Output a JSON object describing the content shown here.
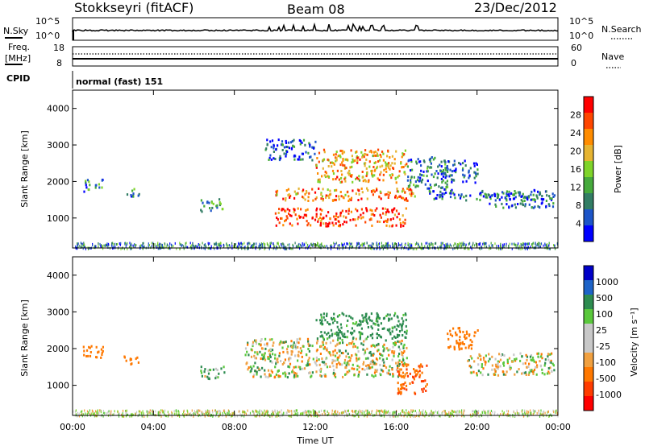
{
  "header": {
    "station": "Stokkseyri (fitACF)",
    "beam": "Beam 08",
    "date": "23/Dec/2012"
  },
  "noise_panel": {
    "left_label": "N.Sky",
    "left_ticks": [
      "10^5",
      "10^0"
    ],
    "right_label": "N.Search",
    "right_ticks": [
      "10^5",
      "10^0"
    ]
  },
  "freq_panel": {
    "left_label_line1": "Freq.",
    "left_label_line2": "[MHz]",
    "left_ticks": [
      "18",
      "8"
    ],
    "right_label": "Nave",
    "right_ticks": [
      "60",
      "0"
    ]
  },
  "cpid_panel": {
    "label": "CPID",
    "mode": "normal (fast) 151"
  },
  "power_panel": {
    "ylabel": "Slant Range [km]",
    "yticks": [
      "4000",
      "3000",
      "2000",
      "1000"
    ],
    "colorbar_label": "Power [dB]",
    "colorbar_ticks": [
      "28",
      "24",
      "20",
      "16",
      "12",
      "8",
      "4"
    ],
    "colors": [
      "#0000ff",
      "#1d55c8",
      "#327d64",
      "#46aa3c",
      "#7fd42a",
      "#e6b432",
      "#ff8c00",
      "#ff4600",
      "#ff0000"
    ]
  },
  "velocity_panel": {
    "ylabel": "Slant Range [km]",
    "yticks": [
      "4000",
      "3000",
      "2000",
      "1000"
    ],
    "colorbar_label": "Velocity [m s⁻¹]",
    "colorbar_ticks": [
      "1000",
      "500",
      "100",
      "25",
      "-25",
      "-100",
      "-500",
      "-1000"
    ],
    "colors": [
      "#0000c8",
      "#1e64c8",
      "#2d8c50",
      "#5ac83c",
      "#c8c8c8",
      "#c8c8c8",
      "#f0a040",
      "#ff7800",
      "#ff3c00",
      "#ff0000"
    ],
    "ground_scatter_color": "#c8c8c8"
  },
  "xaxis": {
    "label": "Time UT",
    "ticks": [
      "00:00",
      "04:00",
      "08:00",
      "12:00",
      "16:00",
      "20:00",
      "00:00"
    ]
  },
  "chart_data": {
    "type": "heatmap",
    "title": "Stokkseyri (fitACF) Beam 08 23/Dec/2012",
    "xlabel": "Time UT",
    "ylabel": "Slant Range [km]",
    "xlim_hours": [
      0,
      24
    ],
    "ylim_km": [
      180,
      4500
    ],
    "power_scale_dB": [
      0,
      30
    ],
    "velocity_scale_ms": [
      -1000,
      1000
    ],
    "power_regions": [
      {
        "t0": 0.5,
        "t1": 1.5,
        "r0": 1750,
        "r1": 2100,
        "dB": 8
      },
      {
        "t0": 2.5,
        "t1": 3.3,
        "r0": 1600,
        "r1": 1850,
        "dB": 8
      },
      {
        "t0": 6.3,
        "t1": 7.5,
        "r0": 1200,
        "r1": 1550,
        "dB": 10
      },
      {
        "t0": 9.5,
        "t1": 12.0,
        "r0": 2600,
        "r1": 3200,
        "dB": 6
      },
      {
        "t0": 10.0,
        "t1": 17.0,
        "r0": 1500,
        "r1": 1850,
        "dB": 22
      },
      {
        "t0": 10.0,
        "t1": 16.5,
        "r0": 800,
        "r1": 1300,
        "dB": 26
      },
      {
        "t0": 12.0,
        "t1": 16.5,
        "r0": 2000,
        "r1": 2900,
        "dB": 20
      },
      {
        "t0": 16.5,
        "t1": 18.5,
        "r0": 1800,
        "r1": 2700,
        "dB": 8
      },
      {
        "t0": 18.0,
        "t1": 20.0,
        "r0": 2000,
        "r1": 2600,
        "dB": 6
      },
      {
        "t0": 17.5,
        "t1": 23.8,
        "r0": 1500,
        "r1": 1800,
        "dB": 6
      },
      {
        "t0": 20.5,
        "t1": 23.8,
        "r0": 1300,
        "r1": 1700,
        "dB": 6
      }
    ],
    "velocity_regions": [
      {
        "t0": 0.5,
        "t1": 1.5,
        "r0": 1750,
        "r1": 2100,
        "v": -200
      },
      {
        "t0": 2.5,
        "t1": 3.3,
        "r0": 1600,
        "r1": 1850,
        "v": -300
      },
      {
        "t0": 6.3,
        "t1": 7.5,
        "r0": 1200,
        "r1": 1550,
        "v": 100
      },
      {
        "t0": 8.5,
        "t1": 16.5,
        "r0": 1250,
        "r1": 2300,
        "v": 0
      },
      {
        "t0": 12.0,
        "t1": 16.5,
        "r0": 2300,
        "r1": 3000,
        "v": 200
      },
      {
        "t0": 16.0,
        "t1": 17.5,
        "r0": 800,
        "r1": 1600,
        "v": -500
      },
      {
        "t0": 18.5,
        "t1": 20.0,
        "r0": 2000,
        "r1": 2600,
        "v": -300
      },
      {
        "t0": 19.5,
        "t1": 23.8,
        "r0": 1300,
        "r1": 1900,
        "v": 0
      }
    ],
    "near_range_clutter_km": [
      180,
      350
    ]
  }
}
